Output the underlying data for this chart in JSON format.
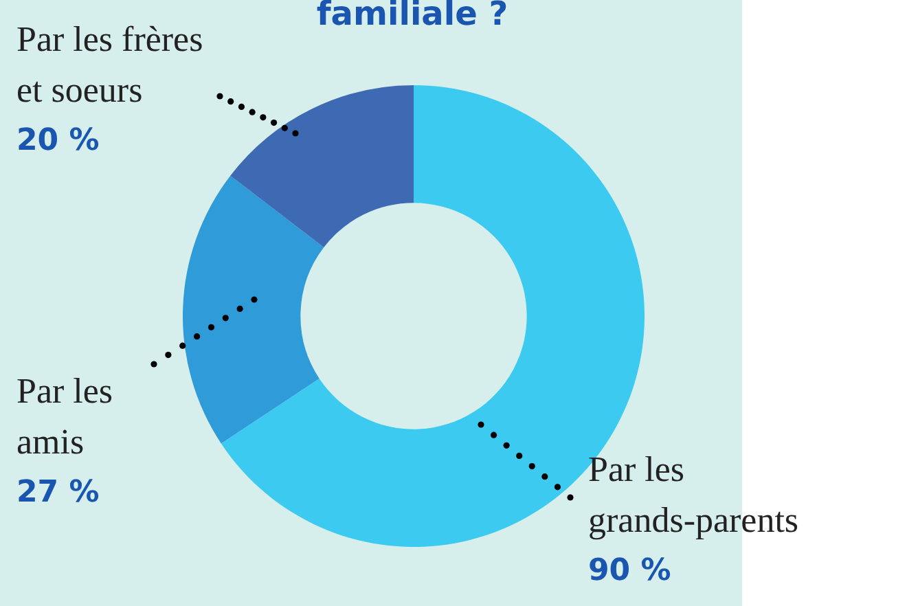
{
  "chart_data": {
    "type": "donut",
    "title": "familiale ?",
    "categories": [
      "Par les\ngrands-parents",
      "Par les\namis",
      "Par les frères\net soeurs"
    ],
    "values": [
      90,
      27,
      20
    ],
    "colors": [
      "#3ccaf0",
      "#2f9bd8",
      "#3d6ab3"
    ],
    "value_labels": [
      "90 %",
      "27 %",
      "20 %"
    ],
    "legend": false
  }
}
